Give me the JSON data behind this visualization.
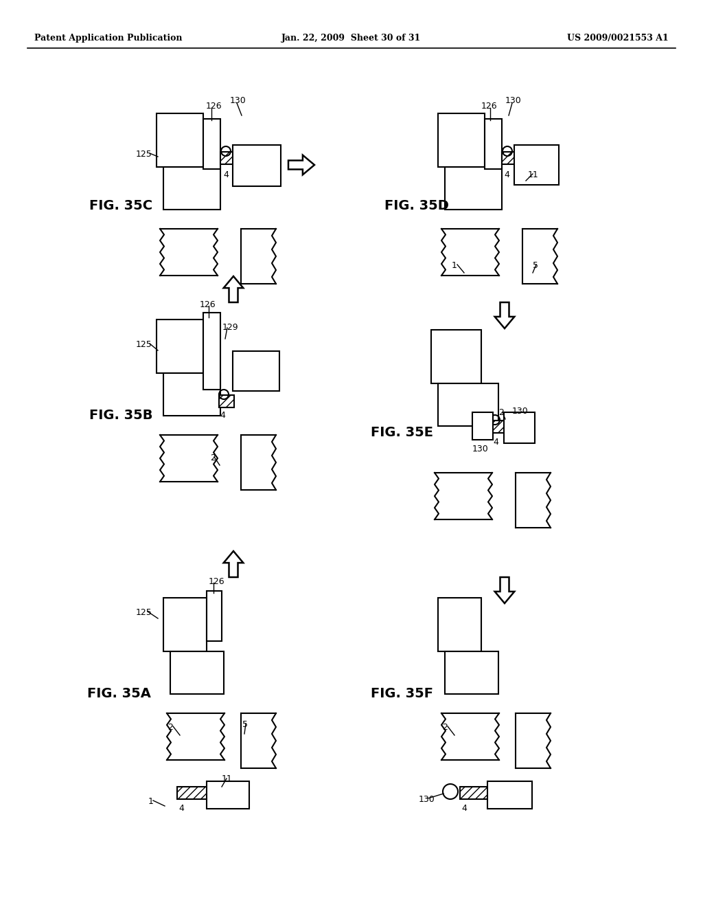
{
  "header_left": "Patent Application Publication",
  "header_mid": "Jan. 22, 2009  Sheet 30 of 31",
  "header_right": "US 2009/0021553 A1",
  "bg": "#ffffff"
}
